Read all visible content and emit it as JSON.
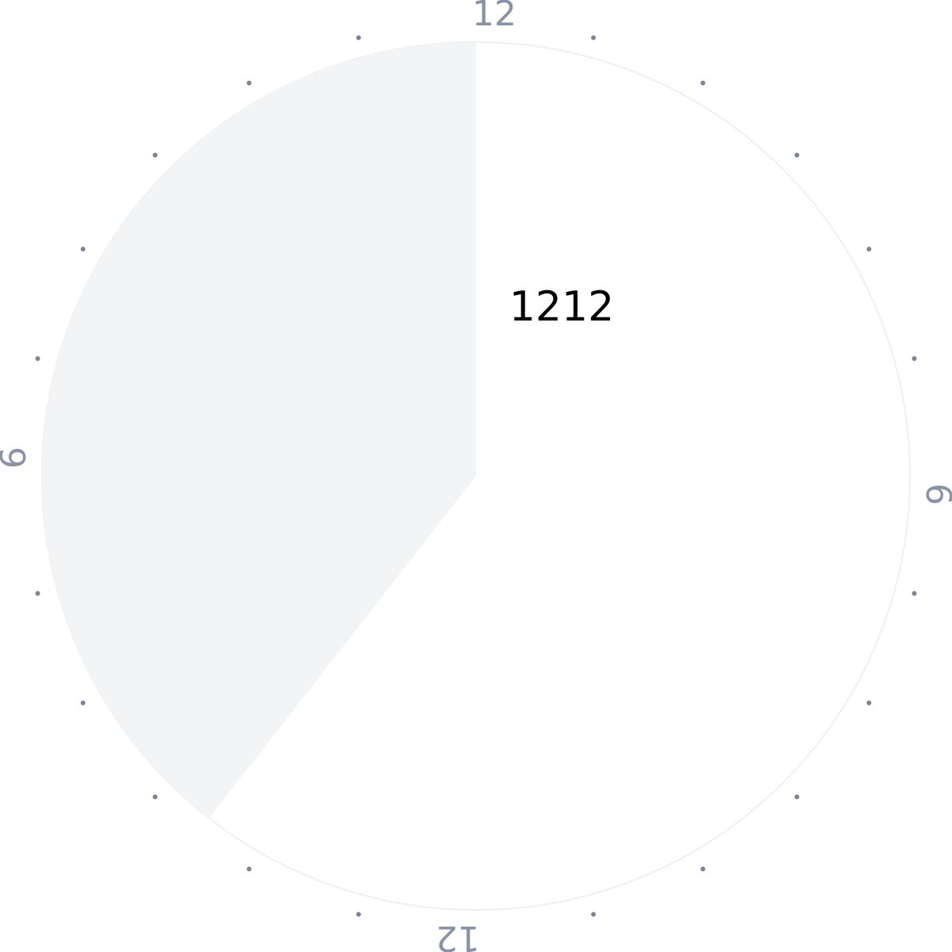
{
  "clock": {
    "center_readout": "1212",
    "hour_labels": {
      "top": "12",
      "right": "6",
      "bottom": "12",
      "left": "6"
    },
    "tick_count": 24,
    "highlighted_arc": {
      "start_hour": 14.53,
      "end_hour": 24
    },
    "colors": {
      "dial_background": "#ffffff",
      "highlighted_arc": "#f3f4f6",
      "dial_border": "#eef0f3",
      "tick_dot": "#7b8396",
      "hour_label": "#8a92a5",
      "readout": "#000000"
    }
  }
}
